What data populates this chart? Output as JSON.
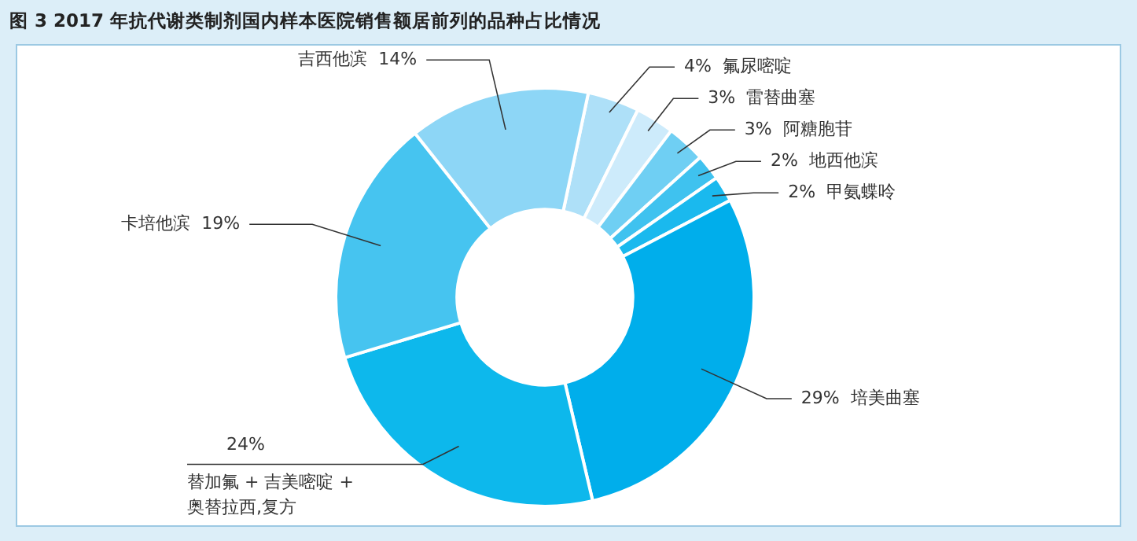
{
  "chart_data": {
    "type": "donut",
    "title": "图 3   2017 年抗代谢类制剂国内样本医院销售额居前列的品种占比情况",
    "categories": [
      "氟尿嘧啶",
      "雷替曲塞",
      "阿糖胞苷",
      "地西他滨",
      "甲氨蝶呤",
      "培美曲塞",
      "替加氟 + 吉美嘧啶 + 奥替拉西,复方",
      "卡培他滨",
      "吉西他滨"
    ],
    "values": [
      4,
      3,
      3,
      2,
      2,
      29,
      24,
      19,
      14
    ],
    "colors": [
      "#aee0f8",
      "#cdebfb",
      "#6fcff3",
      "#3fc2ef",
      "#1ab9ee",
      "#00aeeb",
      "#0db8ec",
      "#46c4f0",
      "#8dd6f6"
    ],
    "value_labels": [
      "4%",
      "3%",
      "3%",
      "2%",
      "2%",
      "29%",
      "24%",
      "19%",
      "14%"
    ],
    "legend": false
  }
}
